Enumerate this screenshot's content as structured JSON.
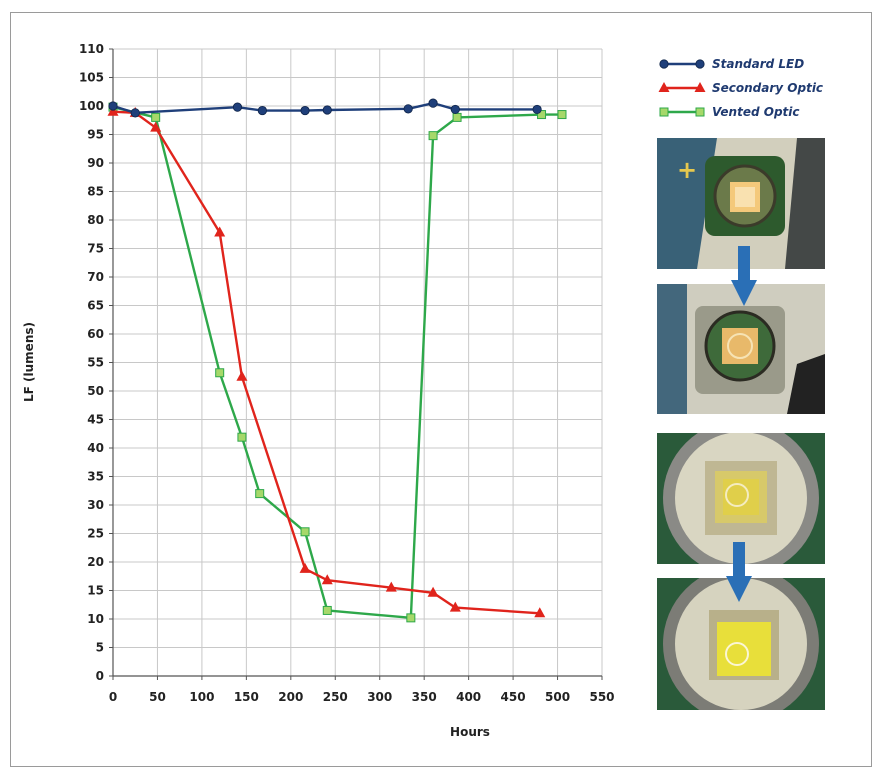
{
  "chart_data": {
    "type": "line",
    "xlabel": "Hours",
    "ylabel": "LF (lumens)",
    "xlim": [
      0,
      550
    ],
    "ylim": [
      0,
      110
    ],
    "xticks": [
      0,
      50,
      100,
      150,
      200,
      250,
      300,
      350,
      400,
      450,
      500,
      550
    ],
    "yticks": [
      0,
      5,
      10,
      15,
      20,
      25,
      30,
      35,
      40,
      45,
      50,
      55,
      60,
      65,
      70,
      75,
      80,
      85,
      90,
      95,
      100,
      105,
      110
    ],
    "grid": true,
    "legend_position": "right-top",
    "series": [
      {
        "name": "Standard LED",
        "color": "#1f3f7a",
        "marker": "circle",
        "x": [
          0,
          25,
          140,
          168,
          216,
          241,
          332,
          360,
          385,
          477
        ],
        "y": [
          100,
          98.8,
          99.8,
          99.2,
          99.2,
          99.3,
          99.5,
          100.5,
          99.4,
          99.4
        ]
      },
      {
        "name": "Secondary Optic",
        "color": "#e0241c",
        "marker": "triangle",
        "x": [
          0,
          25,
          48,
          120,
          145,
          216,
          241,
          313,
          360,
          385,
          480
        ],
        "y": [
          99,
          98.8,
          96.2,
          77.8,
          52.5,
          18.8,
          16.8,
          15.5,
          14.6,
          12,
          11
        ]
      },
      {
        "name": "Vented Optic",
        "color": "#2ea84a",
        "marker": "square",
        "x": [
          0,
          48,
          120,
          145,
          165,
          216,
          241,
          335,
          360,
          387,
          482,
          505
        ],
        "y": [
          99.8,
          98,
          53.2,
          41.9,
          32,
          25.3,
          11.5,
          10.2,
          94.8,
          98,
          98.5,
          98.5
        ]
      }
    ]
  },
  "photos": [
    {
      "name": "led-photo-standard",
      "description_icon": "led-package-icon"
    },
    {
      "name": "led-photo-degraded",
      "description_icon": "led-package-icon"
    },
    {
      "name": "optic-photo-before",
      "description_icon": "optic-package-icon"
    },
    {
      "name": "optic-photo-after",
      "description_icon": "optic-package-icon"
    }
  ],
  "colors": {
    "arrow": "#2a6fb6",
    "axis": "#555555",
    "grid": "#c8c8c8"
  }
}
